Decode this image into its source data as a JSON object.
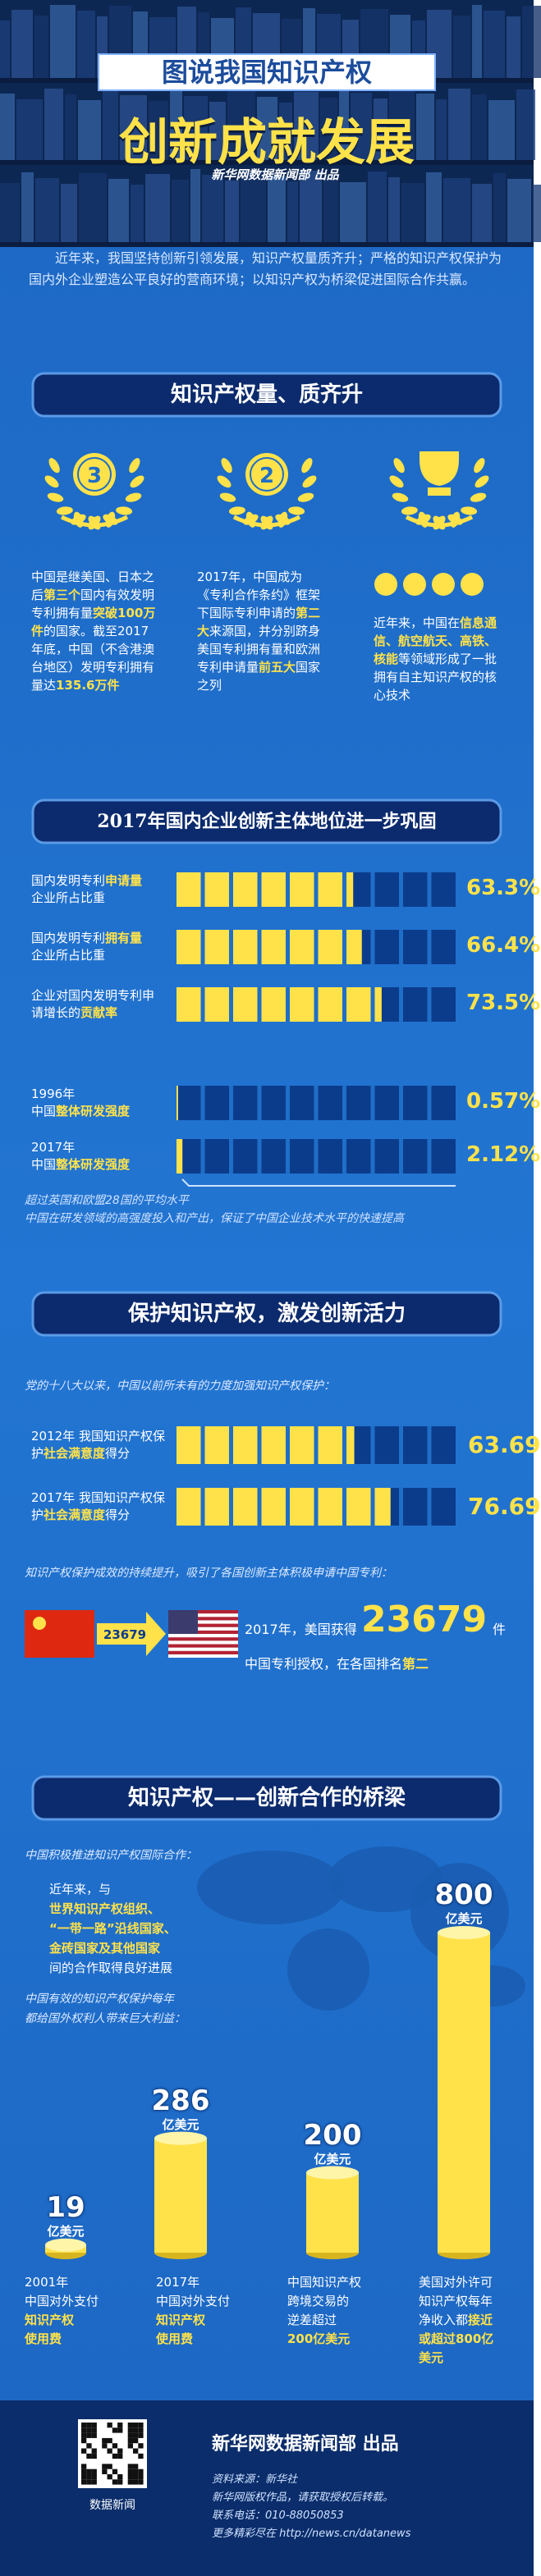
{
  "header": {
    "title": "图说我国知识产权",
    "subtitle": "创新成就发展",
    "credit": "新华网数据新闻部 出品"
  },
  "intro": "近年来，我国坚持创新引领发展，知识产权量质齐升；严格的知识产权保护为国内外企业塑造公平良好的营商环境；以知识产权为桥梁促进国际合作共赢。",
  "section1": {
    "heading": "知识产权量、质齐升",
    "items": [
      {
        "badge": "3",
        "runs": [
          {
            "t": "中国是继美国、日本之后",
            "hl": false
          },
          {
            "t": "第三个",
            "hl": true
          },
          {
            "t": "国内有效发明专利拥有量",
            "hl": false
          },
          {
            "t": "突破100万件",
            "hl": true
          },
          {
            "t": "的国家。截至2017年底，中国（不含港澳台地区）发明专利拥有量达",
            "hl": false
          },
          {
            "t": "135.6万件",
            "hl": true
          }
        ]
      },
      {
        "badge": "2",
        "runs": [
          {
            "t": "2017年，中国成为《专利合作条约》框架下国际专利申请的",
            "hl": false
          },
          {
            "t": "第二大",
            "hl": true
          },
          {
            "t": "来源国，并分别跻身美国专利拥有量和欧洲专利申请量",
            "hl": false
          },
          {
            "t": "前五大",
            "hl": true
          },
          {
            "t": "国家之列",
            "hl": false
          }
        ]
      },
      {
        "runs": [
          {
            "t": "近年来，中国在",
            "hl": false
          },
          {
            "t": "信息通信、航空航天、高铁、核能",
            "hl": true
          },
          {
            "t": "等领域形成了一批拥有自主知识产权的核心技术",
            "hl": false
          }
        ]
      }
    ]
  },
  "section2": {
    "heading": "2017年国内企业创新主体地位进一步巩固",
    "rows": [
      {
        "label": [
          {
            "t": "国内发明专利",
            "hl": false
          },
          {
            "t": "申请量",
            "hl": true
          },
          {
            "t": "企业所占比重",
            "hl": false
          }
        ],
        "value": 63.3,
        "value_label": "63.3%"
      },
      {
        "label": [
          {
            "t": "国内发明专利",
            "hl": false
          },
          {
            "t": "拥有量",
            "hl": true
          },
          {
            "t": "企业所占比重",
            "hl": false
          }
        ],
        "value": 66.4,
        "value_label": "66.4%"
      },
      {
        "label": [
          {
            "t": "企业对国内发明专利申请增长的",
            "hl": false
          },
          {
            "t": "贡献率",
            "hl": true
          }
        ],
        "value": 73.5,
        "value_label": "73.5%"
      },
      {
        "year": "1996年",
        "label": [
          {
            "t": "中国",
            "hl": false
          },
          {
            "t": "整体研发强度",
            "hl": true
          }
        ],
        "value": 0.57,
        "value_label": "0.57%"
      },
      {
        "year": "2017年",
        "label": [
          {
            "t": "中国",
            "hl": false
          },
          {
            "t": "整体研发强度",
            "hl": true
          }
        ],
        "value": 2.12,
        "value_label": "2.12%"
      }
    ],
    "note": [
      "超过英国和欧盟28国的平均水平",
      "中国在研发领域的高强度投入和产出，保证了中国企业技术水平的快速提高"
    ]
  },
  "section3": {
    "heading": "保护知识产权，激发创新活力",
    "lead": "党的十八大以来，中国以前所未有的力度加强知识产权保护：",
    "rows": [
      {
        "label": [
          {
            "t": "2012年 我国知识产权保护",
            "hl": false
          },
          {
            "t": "社会满意度",
            "hl": true
          },
          {
            "t": "得分",
            "hl": false
          }
        ],
        "value": 63.69
      },
      {
        "label": [
          {
            "t": "2017年 我国知识产权保护",
            "hl": false
          },
          {
            "t": "社会满意度",
            "hl": true
          },
          {
            "t": "得分",
            "hl": false
          }
        ],
        "value": 76.69
      }
    ],
    "lead2": "知识产权保护成效的持续提升，吸引了各国创新主体积极申请中国专利：",
    "patent": {
      "value": 23679,
      "before": "2017年，美国获得",
      "unit": "件",
      "after": "中国专利授权，在各国排名",
      "rank": "第二"
    }
  },
  "section4": {
    "heading": "知识产权——创新合作的桥梁",
    "lead": "中国积极推进知识产权国际合作：",
    "cooperation": [
      [
        {
          "t": "近年来，与",
          "hl": false
        }
      ],
      [
        {
          "t": "世界知识产权组织、",
          "hl": true
        }
      ],
      [
        {
          "t": "“一带一路”沿线国家、",
          "hl": true
        }
      ],
      [
        {
          "t": "金砖国家及其他国家",
          "hl": true
        }
      ],
      [
        {
          "t": "间的合作取得良好进展",
          "hl": false
        }
      ]
    ],
    "lead2": [
      "中国有效的知识产权保护每年",
      "都给国外权利人带来巨大利益："
    ],
    "bars": [
      {
        "value": 19,
        "unit": "亿美元",
        "caption": [
          [
            {
              "t": "2001年",
              "hl": false
            }
          ],
          [
            {
              "t": "中国对外支付",
              "hl": false
            }
          ],
          [
            {
              "t": "知识产权",
              "hl": true
            }
          ],
          [
            {
              "t": "使用费",
              "hl": true
            }
          ]
        ]
      },
      {
        "value": 286,
        "unit": "亿美元",
        "caption": [
          [
            {
              "t": "2017年",
              "hl": false
            }
          ],
          [
            {
              "t": "中国对外支付",
              "hl": false
            }
          ],
          [
            {
              "t": "知识产权",
              "hl": true
            }
          ],
          [
            {
              "t": "使用费",
              "hl": true
            }
          ]
        ]
      },
      {
        "value": 200,
        "unit": "亿美元",
        "caption": [
          [
            {
              "t": "中国知识产权",
              "hl": false
            }
          ],
          [
            {
              "t": "跨境交易的",
              "hl": false
            }
          ],
          [
            {
              "t": "逆差超过",
              "hl": false
            }
          ],
          [
            {
              "t": "200亿美元",
              "hl": true
            }
          ]
        ]
      },
      {
        "value": 800,
        "unit": "亿美元",
        "caption": [
          [
            {
              "t": "美国对外许可",
              "hl": false
            }
          ],
          [
            {
              "t": "知识产权每年",
              "hl": false
            }
          ],
          [
            {
              "t": "净收入都",
              "hl": false
            },
            {
              "t": "接近",
              "hl": true
            }
          ],
          [
            {
              "t": "或超过800亿",
              "hl": true
            }
          ],
          [
            {
              "t": "美元",
              "hl": true
            }
          ]
        ]
      }
    ]
  },
  "footer": {
    "qr_label": "数据新闻",
    "credit": "新华网数据新闻部 出品",
    "lines": [
      "资料来源：新华社",
      "新华网版权作品，请获取授权后转载。",
      "联系电话：010-88050853",
      "更多精彩尽在 http://news.cn/datanews"
    ]
  }
}
